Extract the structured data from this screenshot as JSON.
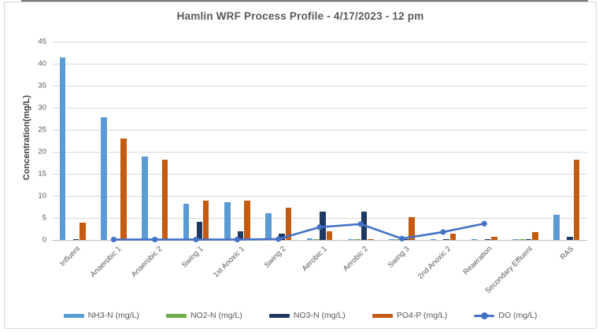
{
  "title": "Hamlin WRF Process Profile - 4/17/2023 - 12 pm",
  "chart_data": {
    "type": "bar",
    "title": "Hamlin WRF Process Profile - 4/17/2023 - 12 pm",
    "xlabel": "",
    "ylabel": "Concentration(mg/L)",
    "ylim": [
      0,
      45
    ],
    "ytick_step": 5,
    "yticks": [
      0,
      5,
      10,
      15,
      20,
      25,
      30,
      35,
      40,
      45
    ],
    "grid": true,
    "legend_position": "bottom",
    "categories": [
      "Influent",
      "Anaerobic 1",
      "Anaerobic 2",
      "Swing 1",
      "1st Anoxic 1",
      "Swing 2",
      "Aerobic 1",
      "Aerobic 2",
      "Swing 3",
      "2nd Anoxic 2",
      "Reaeration",
      "Secondary Effluent",
      "RAS"
    ],
    "series": [
      {
        "name": "NH3-N (mg/L)",
        "type": "bar",
        "color": "#5B9BD5",
        "values": [
          41.5,
          27.8,
          19.0,
          8.2,
          8.5,
          6.0,
          0.3,
          0.2,
          0.1,
          0.1,
          0.1,
          0.2,
          5.7
        ]
      },
      {
        "name": "NO2-N (mg/L)",
        "type": "bar",
        "color": "#70AD47",
        "values": [
          0,
          0,
          0,
          0,
          0,
          0.1,
          0.2,
          0.2,
          0.1,
          0,
          0,
          0.1,
          0
        ]
      },
      {
        "name": "NO3-N (mg/L)",
        "type": "bar",
        "color": "#1F3864",
        "values": [
          0.1,
          0.1,
          0.1,
          4.1,
          2.0,
          1.4,
          6.4,
          6.5,
          0.2,
          0.1,
          0.1,
          0.2,
          0.7
        ]
      },
      {
        "name": "PO4-P (mg/L)",
        "type": "bar",
        "color": "#C55A11",
        "values": [
          4.0,
          23.0,
          18.3,
          9.0,
          8.9,
          7.3,
          2.0,
          0.2,
          5.2,
          1.5,
          0.7,
          1.8,
          18.2
        ]
      },
      {
        "name": "DO (mg/L)",
        "type": "line",
        "color": "#4472C4",
        "values": [
          null,
          0.1,
          0.1,
          0.1,
          0.1,
          0.2,
          2.9,
          3.6,
          0.3,
          1.8,
          3.7,
          null,
          null
        ]
      }
    ]
  },
  "colors": {
    "grid": "#D9D9D9",
    "axis_text": "#595959",
    "title_text": "#595959"
  }
}
